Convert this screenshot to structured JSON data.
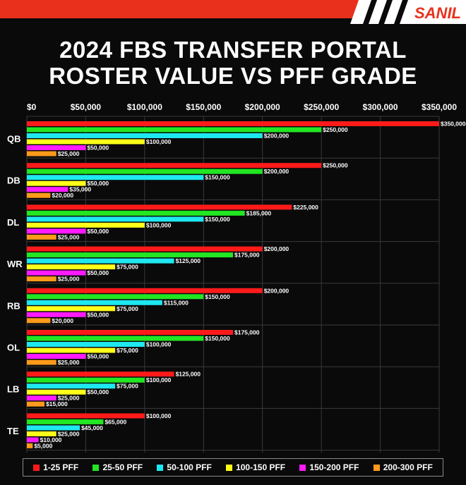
{
  "brand": {
    "logo_text": "SANIL"
  },
  "header": {
    "title_line1": "2024 FBS TRANSFER PORTAL",
    "title_line2": "ROSTER VALUE  VS PFF GRADE"
  },
  "colors": {
    "background": "#0a0a0a",
    "accent": "#e8301c",
    "grid": "#3a3a3a",
    "series": [
      "#ff1a1a",
      "#22e622",
      "#1ee8f0",
      "#ffff1a",
      "#ff1aff",
      "#ff9a1a"
    ]
  },
  "chart_data": {
    "type": "bar",
    "orientation": "horizontal",
    "title": "2024 FBS TRANSFER PORTAL ROSTER VALUE  VS PFF GRADE",
    "categories": [
      "QB",
      "DB",
      "DL",
      "WR",
      "RB",
      "OL",
      "LB",
      "TE"
    ],
    "x_ticks": [
      "$0",
      "$50,000",
      "$100,000",
      "$150,000",
      "$200,000",
      "$250,000",
      "$300,000",
      "$350,000"
    ],
    "xlim": [
      0,
      350000
    ],
    "grid": true,
    "legend_position": "bottom",
    "series": [
      {
        "name": "1-25 PFF",
        "values": [
          350000,
          250000,
          225000,
          200000,
          200000,
          175000,
          125000,
          100000
        ],
        "labels": [
          "$350,000",
          "$250,000",
          "$225,000",
          "$200,000",
          "$200,000",
          "$175,000",
          "$125,000",
          "$100,000"
        ]
      },
      {
        "name": "25-50 PFF",
        "values": [
          250000,
          200000,
          185000,
          175000,
          150000,
          150000,
          100000,
          65000
        ],
        "labels": [
          "$250,000",
          "$200,000",
          "$185,000",
          "$175,000",
          "$150,000",
          "$150,000",
          "$100,000",
          "$65,000"
        ]
      },
      {
        "name": "50-100 PFF",
        "values": [
          200000,
          150000,
          150000,
          125000,
          115000,
          100000,
          75000,
          45000
        ],
        "labels": [
          "$200,000",
          "$150,000",
          "$150,000",
          "$125,000",
          "$115,000",
          "$100,000",
          "$75,000",
          "$45,000"
        ]
      },
      {
        "name": "100-150 PFF",
        "values": [
          100000,
          50000,
          100000,
          75000,
          75000,
          75000,
          50000,
          25000
        ],
        "labels": [
          "$100,000",
          "$50,000",
          "$100,000",
          "$75,000",
          "$75,000",
          "$75,000",
          "$50,000",
          "$25,000"
        ]
      },
      {
        "name": "150-200 PFF",
        "values": [
          50000,
          35000,
          50000,
          50000,
          50000,
          50000,
          25000,
          10000
        ],
        "labels": [
          "$50,000",
          "$35,000",
          "$50,000",
          "$50,000",
          "$50,000",
          "$50,000",
          "$25,000",
          "$10,000"
        ]
      },
      {
        "name": "200-300 PFF",
        "values": [
          25000,
          20000,
          25000,
          25000,
          20000,
          25000,
          15000,
          5000
        ],
        "labels": [
          "$25,000",
          "$20,000",
          "$25,000",
          "$25,000",
          "$20,000",
          "$25,000",
          "$15,000",
          "$5,000"
        ]
      }
    ]
  }
}
